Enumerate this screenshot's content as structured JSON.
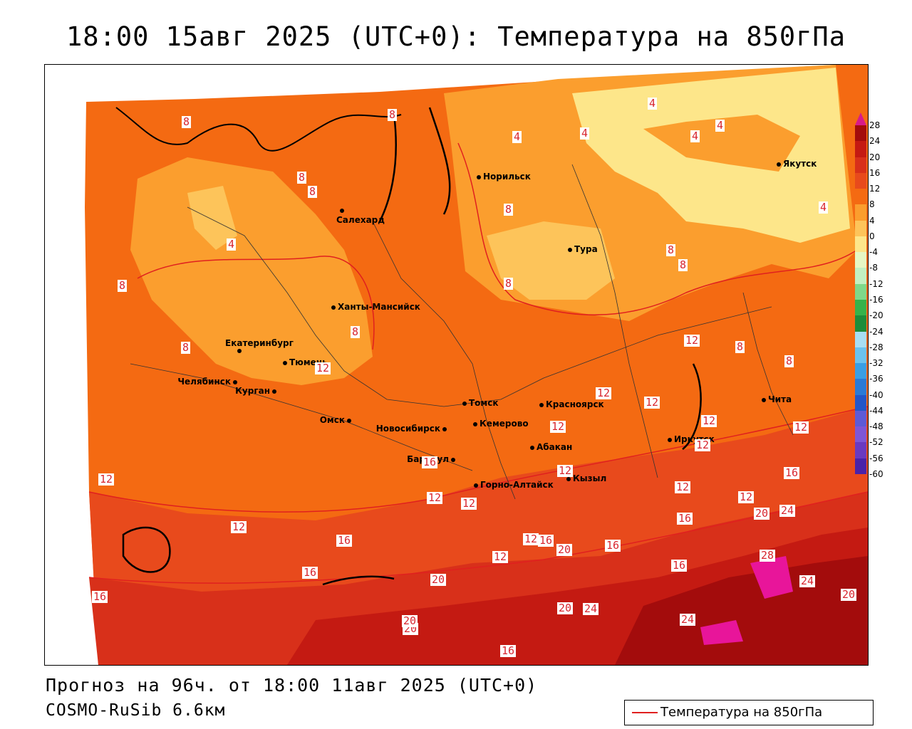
{
  "title": "18:00 15авг 2025 (UTC+0): Температура на 850гПа",
  "footer": {
    "forecast": "Прогноз на 96ч. от 18:00 11авг 2025 (UTC+0)",
    "model": "COSMO-RuSib 6.6км"
  },
  "legend": {
    "label": "Температура на 850гПа",
    "line_color": "#e0201f"
  },
  "colorbar": {
    "ticks": [
      "28",
      "24",
      "20",
      "16",
      "12",
      "8",
      "4",
      "0",
      "-4",
      "-8",
      "-12",
      "-16",
      "-20",
      "-24",
      "-28",
      "-32",
      "-36",
      "-40",
      "-44",
      "-48",
      "-52",
      "-56",
      "-60"
    ],
    "colors": [
      "#a30c0c",
      "#c41a12",
      "#d8301a",
      "#e84a1c",
      "#f46a12",
      "#fb9e2e",
      "#fdc45a",
      "#fde68a",
      "#e6f7c4",
      "#c2f0c2",
      "#7fd88a",
      "#36b24a",
      "#1e8c3a",
      "#a8def4",
      "#6cc2ee",
      "#3a9ee4",
      "#2a7ad6",
      "#2256c8",
      "#5e5ad6",
      "#7e56d6",
      "#6a3ac0",
      "#4a22a8",
      "#2a0c90"
    ]
  },
  "cities": [
    {
      "name": "Норильск"
    },
    {
      "name": "Салехард"
    },
    {
      "name": "Якутск"
    },
    {
      "name": "Тура"
    },
    {
      "name": "Ханты-Мансийск"
    },
    {
      "name": "Екатеринбург"
    },
    {
      "name": "Тюмень"
    },
    {
      "name": "Челябинск"
    },
    {
      "name": "Курган"
    },
    {
      "name": "Омск"
    },
    {
      "name": "Новосибирск"
    },
    {
      "name": "Томск"
    },
    {
      "name": "Кемерово"
    },
    {
      "name": "Красноярск"
    },
    {
      "name": "Абакан"
    },
    {
      "name": "Барнаул"
    },
    {
      "name": "Горно-Алтайск"
    },
    {
      "name": "Кызыл"
    },
    {
      "name": "Иркутск"
    },
    {
      "name": "Чита"
    }
  ],
  "contour_labels": [
    "8",
    "8",
    "8",
    "8",
    "4",
    "4",
    "4",
    "4",
    "4",
    "4",
    "8",
    "4",
    "8",
    "8",
    "8",
    "8",
    "8",
    "8",
    "12",
    "8",
    "8",
    "12",
    "12",
    "12",
    "12",
    "12",
    "12",
    "12",
    "12",
    "12",
    "12",
    "12",
    "12",
    "16",
    "12",
    "12",
    "16",
    "12",
    "20",
    "24",
    "16",
    "16",
    "12",
    "16",
    "20",
    "16",
    "20",
    "16",
    "28",
    "24",
    "20",
    "16",
    "20",
    "24",
    "24",
    "20",
    "20",
    "16",
    "16"
  ]
}
